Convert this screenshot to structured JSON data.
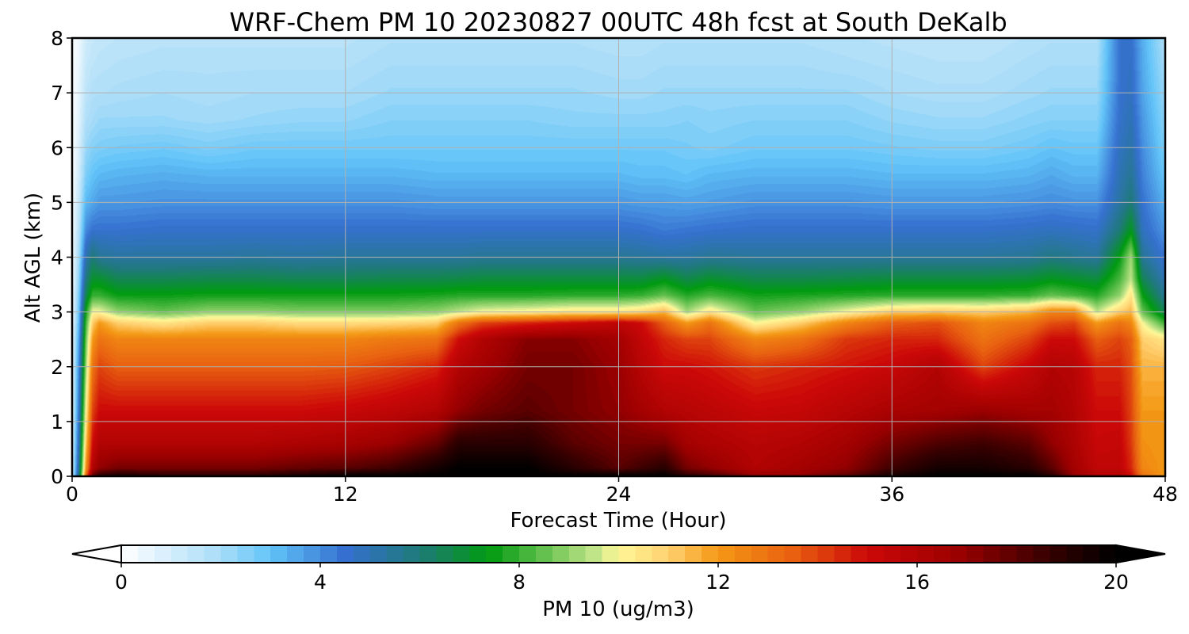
{
  "chart_data": {
    "type": "heatmap",
    "title": "WRF-Chem PM 10  20230827 00UTC 48h fcst at South DeKalb",
    "xlabel": "Forecast Time (Hour)",
    "ylabel": "Alt AGL (km)",
    "xlim": [
      0,
      48
    ],
    "ylim": [
      0,
      8
    ],
    "x_ticks": [
      "0",
      "12",
      "24",
      "36",
      "48"
    ],
    "y_ticks": [
      "0",
      "1",
      "2",
      "3",
      "4",
      "5",
      "6",
      "7",
      "8"
    ],
    "grid": true,
    "colorbar": {
      "label": "PM 10  (ug/m3)",
      "range": [
        0,
        20
      ],
      "ticks": [
        "0",
        "4",
        "8",
        "12",
        "16",
        "20"
      ],
      "extend": "both",
      "placement": "bottom",
      "colors": [
        [
          0,
          "#ffffff"
        ],
        [
          2,
          "#a8dcf8"
        ],
        [
          3,
          "#62c4f8"
        ],
        [
          4.5,
          "#3570d0"
        ],
        [
          6,
          "#1f7a78"
        ],
        [
          7.4,
          "#009a10"
        ],
        [
          9.5,
          "#c0e488"
        ],
        [
          10,
          "#fff898"
        ],
        [
          11,
          "#ffd070"
        ],
        [
          12,
          "#f49814"
        ],
        [
          13.5,
          "#e86010"
        ],
        [
          15,
          "#cc0808"
        ],
        [
          16.8,
          "#9c0000"
        ],
        [
          18.6,
          "#380000"
        ],
        [
          20,
          "#000000"
        ]
      ]
    },
    "hours": [
      0,
      0.3,
      0.6,
      0.9,
      1.2,
      2,
      4,
      6,
      8,
      10,
      12,
      14,
      16,
      17,
      18,
      20,
      22,
      24,
      25,
      26,
      27,
      28,
      30,
      32,
      34,
      36,
      38,
      40,
      42,
      43,
      44,
      45,
      46,
      46.5,
      47,
      48
    ],
    "altitudes_km": [
      0,
      0.15,
      0.6,
      1.2,
      2.0,
      2.5,
      2.8,
      3.0,
      3.3,
      3.6,
      4.0,
      4.5,
      5.0,
      5.5,
      6.0,
      6.5,
      7.0,
      7.5,
      8.0
    ],
    "pm10_profiles": [
      [
        1,
        1,
        0.8,
        0.6,
        0.5,
        0.4,
        0.3,
        0.3,
        0.3,
        0.2,
        0.2,
        0.2,
        0.2,
        0.1,
        0.1,
        0.1,
        0.1,
        0.1,
        0.1
      ],
      [
        6,
        5.5,
        5,
        4.5,
        4,
        3.6,
        3.2,
        3,
        2.7,
        2.4,
        2.1,
        1.7,
        1.4,
        1.1,
        0.9,
        0.7,
        0.6,
        0.5,
        0.4
      ],
      [
        13,
        12,
        11,
        10,
        9,
        8.5,
        8,
        7.5,
        6.5,
        5.8,
        5,
        4,
        3.2,
        2.6,
        2.2,
        1.8,
        1.5,
        1.3,
        1.1
      ],
      [
        18,
        16,
        15,
        14,
        13,
        12,
        11,
        10,
        8,
        7,
        6,
        4.5,
        3.5,
        3,
        2.5,
        2,
        1.8,
        1.5,
        1.3
      ],
      [
        19,
        17,
        16,
        15,
        14,
        13,
        12,
        10,
        8,
        7,
        5.5,
        4.5,
        3.8,
        3.2,
        2.6,
        2.2,
        1.8,
        1.6,
        1.4
      ],
      [
        19.5,
        17.5,
        16,
        15,
        13.5,
        12.5,
        11,
        9,
        7.5,
        6.5,
        5.3,
        4.5,
        3.8,
        3.3,
        2.7,
        2.2,
        1.9,
        1.7,
        1.5
      ],
      [
        19,
        17.5,
        16,
        15,
        13.5,
        12.5,
        10.5,
        8.5,
        7.5,
        6.5,
        5.3,
        4.6,
        3.9,
        3.4,
        2.8,
        2.2,
        2,
        1.8,
        1.6
      ],
      [
        19,
        17.5,
        16,
        15,
        13.5,
        12.5,
        11,
        9,
        7.6,
        6.6,
        5.3,
        4.6,
        3.9,
        3.3,
        2.6,
        2.1,
        1.9,
        1.8,
        1.6
      ],
      [
        19,
        17.5,
        16,
        15,
        13.5,
        12.5,
        11,
        9,
        7.6,
        6.6,
        5.4,
        4.6,
        3.9,
        3.3,
        2.8,
        2.2,
        2,
        1.8,
        1.6
      ],
      [
        19.5,
        17.8,
        16.2,
        15,
        13.5,
        12.5,
        10.7,
        8.8,
        7.6,
        6.5,
        5.3,
        4.6,
        3.9,
        3.3,
        2.8,
        2.3,
        2,
        1.8,
        1.6
      ],
      [
        20,
        18,
        16.4,
        15.2,
        13.6,
        12.5,
        10.7,
        8.8,
        7.6,
        6.5,
        5.4,
        4.6,
        3.9,
        3.3,
        2.8,
        2.3,
        2,
        1.8,
        1.6
      ],
      [
        20,
        18.5,
        16.8,
        15.5,
        14,
        12.8,
        10.8,
        8.8,
        7.6,
        6.6,
        5.4,
        4.6,
        3.9,
        3.3,
        2.8,
        2.5,
        2.2,
        2,
        1.8
      ],
      [
        20,
        19.5,
        17.8,
        16,
        14.5,
        13,
        11,
        9,
        7.7,
        6.6,
        5.4,
        4.6,
        3.8,
        3.2,
        2.8,
        2.5,
        2.2,
        2,
        1.8
      ],
      [
        20,
        20,
        19,
        17,
        16,
        15,
        13,
        9.5,
        7.8,
        6.7,
        5.4,
        4.6,
        3.8,
        3.2,
        2.8,
        2.5,
        2.2,
        2,
        1.8
      ],
      [
        20,
        20,
        19,
        17.5,
        16.5,
        16,
        14,
        10,
        7.8,
        6.8,
        5.5,
        4.6,
        3.8,
        3.2,
        2.8,
        2.5,
        2.2,
        2,
        1.8
      ],
      [
        20,
        20,
        19,
        18,
        17.5,
        17.2,
        14.5,
        10.2,
        7.8,
        6.8,
        5.5,
        4.6,
        3.8,
        3.2,
        2.8,
        2.5,
        2.2,
        2,
        1.8
      ],
      [
        20,
        19,
        18,
        17.5,
        17.5,
        17.2,
        15,
        10.5,
        7.9,
        6.8,
        5.5,
        4.6,
        3.8,
        3.2,
        2.8,
        2.4,
        2.2,
        2,
        1.8
      ],
      [
        20,
        18,
        17.5,
        17,
        16.8,
        16.5,
        15.5,
        10.5,
        7.9,
        6.8,
        5.5,
        4.6,
        3.8,
        3.2,
        2.8,
        2.4,
        2.1,
        1.9,
        1.7
      ],
      [
        20,
        18.5,
        17.5,
        16.5,
        15.8,
        15.4,
        15,
        10.8,
        8,
        6.8,
        5.4,
        4.5,
        3.7,
        3.1,
        2.8,
        2.4,
        2.1,
        1.9,
        1.7
      ],
      [
        20,
        19,
        17.5,
        16,
        15,
        14.5,
        13.5,
        11.5,
        8.5,
        7.2,
        5.3,
        4.3,
        3.7,
        3.1,
        2.8,
        2.4,
        2.2,
        2,
        1.8
      ],
      [
        19,
        17.5,
        16.5,
        15.8,
        15,
        14,
        12,
        9.2,
        7.8,
        6.6,
        5.3,
        4.4,
        3.6,
        3,
        2.7,
        2.5,
        2.2,
        2,
        1.8
      ],
      [
        18.5,
        17,
        16.2,
        15.6,
        14.8,
        14,
        13,
        10.5,
        8.2,
        7,
        5.5,
        4.5,
        3.7,
        3.2,
        2.6,
        2.4,
        2.2,
        2,
        1.8
      ],
      [
        17,
        16,
        15.8,
        15.2,
        14.2,
        12.5,
        10,
        8.5,
        7.6,
        6.6,
        5.4,
        4.6,
        3.9,
        3.3,
        2.8,
        2.5,
        2.2,
        2,
        1.8
      ],
      [
        17,
        16.5,
        16,
        15.3,
        14.5,
        13,
        11,
        9,
        7.7,
        6.6,
        5.4,
        4.6,
        3.9,
        3.3,
        2.8,
        2.5,
        2.2,
        2,
        1.8
      ],
      [
        18,
        17,
        16.5,
        15.8,
        14.8,
        14.2,
        12.5,
        10,
        7.8,
        6.7,
        5.4,
        4.6,
        3.9,
        3.3,
        2.8,
        2.5,
        2.2,
        1.9,
        1.7
      ],
      [
        19.5,
        18.5,
        17.5,
        16.3,
        15.2,
        14.5,
        13.5,
        11,
        7.9,
        6.8,
        5.4,
        4.6,
        3.8,
        3.2,
        2.7,
        2.3,
        2,
        1.8,
        1.6
      ],
      [
        20,
        19.5,
        18.2,
        16.5,
        16,
        14.5,
        13.8,
        11.2,
        7.9,
        6.8,
        5.4,
        4.6,
        3.8,
        3.2,
        2.6,
        2.2,
        1.9,
        1.7,
        1.5
      ],
      [
        20,
        19.5,
        18.5,
        16.8,
        14,
        13,
        12.5,
        11,
        7.9,
        6.8,
        5.4,
        4.6,
        3.8,
        3.2,
        2.6,
        2.2,
        1.9,
        1.7,
        1.5
      ],
      [
        20,
        19,
        18,
        16.5,
        15.2,
        14,
        13,
        11.5,
        8,
        6.9,
        5.5,
        4.7,
        3.9,
        3.3,
        2.8,
        2.4,
        2.1,
        1.9,
        1.7
      ],
      [
        19,
        18,
        17,
        16.5,
        16,
        15,
        13.8,
        12.5,
        8.5,
        7.2,
        5.8,
        4.8,
        4,
        3.5,
        3,
        2.5,
        2.2,
        2,
        1.8
      ],
      [
        17,
        16.5,
        16.2,
        16,
        15.8,
        15,
        14,
        12.5,
        8.2,
        7,
        5.6,
        4.7,
        3.9,
        3.3,
        2.9,
        2.5,
        2.2,
        2,
        1.8
      ],
      [
        16,
        15.5,
        15.2,
        15,
        14.5,
        13.5,
        12,
        9.5,
        7.8,
        6.8,
        5.4,
        4.6,
        3.9,
        3.3,
        2.9,
        2.5,
        2.2,
        2,
        1.8
      ],
      [
        16,
        15.5,
        15.3,
        15,
        14.5,
        14,
        13,
        11,
        9,
        8.2,
        7.4,
        6,
        5.3,
        5,
        4.8,
        4.6,
        4.5,
        4.5,
        4.5
      ],
      [
        15,
        14.5,
        14.2,
        14,
        13.8,
        13.5,
        12.5,
        11.5,
        10.5,
        9.5,
        9.2,
        7.2,
        6,
        5.5,
        5.2,
        5,
        4.8,
        4.7,
        4.6
      ],
      [
        13,
        12.5,
        12.2,
        12,
        11.5,
        11,
        10,
        8.5,
        7.5,
        6.5,
        5.5,
        4.8,
        4.5,
        4.2,
        4,
        3.8,
        3.6,
        3.5,
        3.4
      ],
      [
        12,
        12,
        12,
        12,
        11.5,
        10.5,
        8,
        6.5,
        5.5,
        5,
        4.4,
        3.8,
        3.3,
        2.9,
        2.6,
        2.4,
        2.2,
        2,
        1.8
      ]
    ]
  }
}
